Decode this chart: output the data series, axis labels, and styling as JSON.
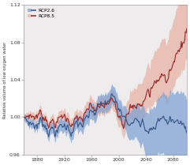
{
  "title": "",
  "ylabel": "Relative volume of low oxygen water",
  "xlabel": "",
  "xlim": [
    1860,
    2100
  ],
  "ylim": [
    0.96,
    1.12
  ],
  "yticks": [
    0.96,
    1.0,
    1.04,
    1.08,
    1.12
  ],
  "xticks": [
    1880,
    1920,
    1960,
    2000,
    2040,
    2080
  ],
  "rcp26_color": "#3a5a8a",
  "rcp85_color": "#9b2f2f",
  "rcp26_fill": "#7a9fd4",
  "rcp85_fill": "#e8b0a0",
  "background": "#eeecec"
}
